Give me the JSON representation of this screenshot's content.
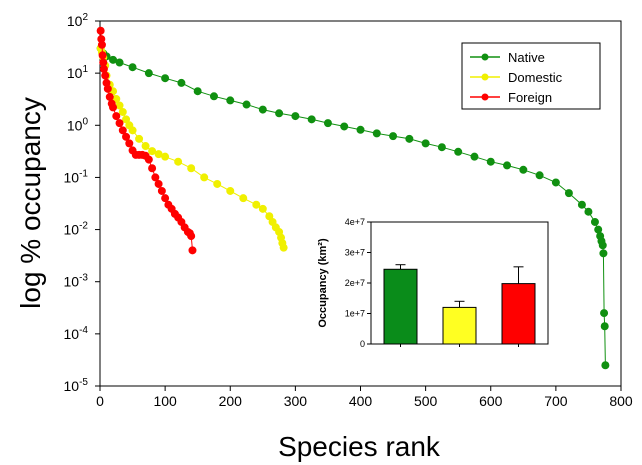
{
  "chart_data": [
    {
      "type": "scatter",
      "title": "",
      "xlabel": "Species rank",
      "ylabel": "log % occupancy",
      "xlim": [
        0,
        800
      ],
      "ylim": [
        1e-05,
        100
      ],
      "yscale": "log",
      "x_ticks": [
        "0",
        "100",
        "200",
        "300",
        "400",
        "500",
        "600",
        "700",
        "800"
      ],
      "y_ticks": [
        {
          "base": "10",
          "exp": "2"
        },
        {
          "base": "10",
          "exp": "1"
        },
        {
          "base": "10",
          "exp": "0"
        },
        {
          "base": "10",
          "exp": "-1"
        },
        {
          "base": "10",
          "exp": "-2"
        },
        {
          "base": "10",
          "exp": "-3"
        },
        {
          "base": "10",
          "exp": "-4"
        },
        {
          "base": "10",
          "exp": "-5"
        }
      ],
      "legend_position": "top-right",
      "series": [
        {
          "name": "Native",
          "color": "#109010",
          "x": [
            1,
            5,
            10,
            20,
            30,
            50,
            75,
            100,
            125,
            150,
            175,
            200,
            225,
            250,
            275,
            300,
            325,
            350,
            375,
            400,
            425,
            450,
            475,
            500,
            525,
            550,
            575,
            600,
            625,
            650,
            675,
            700,
            720,
            740,
            750,
            760,
            765,
            768,
            770,
            772,
            773,
            774,
            775,
            776
          ],
          "y": [
            30,
            24,
            21,
            18,
            16,
            13,
            10,
            8.0,
            6.5,
            4.5,
            3.6,
            3.0,
            2.5,
            2.0,
            1.7,
            1.5,
            1.3,
            1.1,
            0.95,
            0.82,
            0.7,
            0.62,
            0.55,
            0.45,
            0.38,
            0.31,
            0.25,
            0.2,
            0.17,
            0.14,
            0.11,
            0.08,
            0.05,
            0.03,
            0.022,
            0.014,
            0.01,
            0.0075,
            0.006,
            0.005,
            0.0035,
            0.00025,
            0.00014,
            2.5e-05
          ]
        },
        {
          "name": "Domestic",
          "color": "#f0f000",
          "x": [
            1,
            3,
            5,
            8,
            10,
            15,
            20,
            25,
            30,
            35,
            40,
            45,
            50,
            60,
            70,
            80,
            90,
            100,
            120,
            140,
            160,
            180,
            200,
            220,
            240,
            250,
            260,
            265,
            270,
            275,
            278,
            280,
            282
          ],
          "y": [
            30,
            25,
            20,
            14,
            9,
            6,
            4.5,
            3.2,
            2.4,
            1.8,
            1.3,
            1.0,
            0.8,
            0.55,
            0.4,
            0.32,
            0.28,
            0.25,
            0.2,
            0.15,
            0.1,
            0.075,
            0.055,
            0.04,
            0.03,
            0.025,
            0.018,
            0.014,
            0.011,
            0.009,
            0.007,
            0.0055,
            0.0045
          ]
        },
        {
          "name": "Foreign",
          "color": "#ff0000",
          "x": [
            1,
            2,
            3,
            4,
            5,
            6,
            8,
            10,
            12,
            15,
            18,
            20,
            25,
            30,
            35,
            40,
            45,
            50,
            55,
            60,
            65,
            70,
            75,
            80,
            85,
            90,
            95,
            100,
            105,
            110,
            115,
            120,
            125,
            130,
            135,
            138,
            140,
            142
          ],
          "y": [
            65,
            45,
            35,
            22,
            16,
            12,
            9,
            6.5,
            5,
            3.5,
            2.6,
            2.2,
            1.5,
            1.1,
            0.8,
            0.6,
            0.45,
            0.33,
            0.27,
            0.27,
            0.27,
            0.26,
            0.22,
            0.15,
            0.1,
            0.075,
            0.055,
            0.04,
            0.03,
            0.025,
            0.02,
            0.017,
            0.014,
            0.011,
            0.009,
            0.0085,
            0.0075,
            0.004
          ]
        }
      ]
    },
    {
      "type": "bar",
      "title": "",
      "xlabel": "",
      "ylabel": "Occupancy (km²)",
      "ylim": [
        0,
        40000000
      ],
      "y_ticks": [
        "0",
        "1e+7",
        "2e+7",
        "3e+7",
        "4e+7"
      ],
      "categories": [
        "Native",
        "Domestic",
        "Foreign"
      ],
      "values": [
        24500000,
        12000000,
        19800000
      ],
      "errors": [
        1500000,
        2000000,
        5500000
      ],
      "colors": [
        "#0a8c1a",
        "#ffff22",
        "#ff0000"
      ]
    }
  ]
}
